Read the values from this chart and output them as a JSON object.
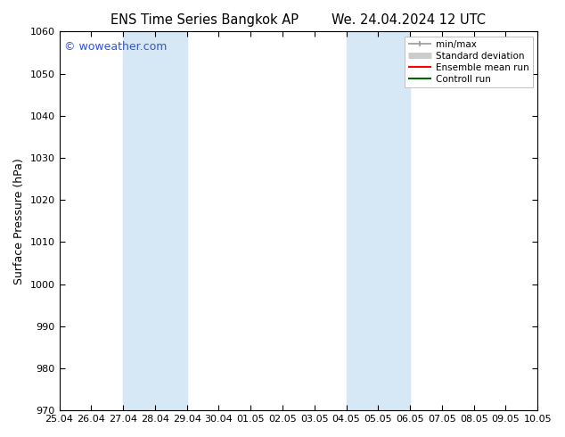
{
  "title_left": "ENS Time Series Bangkok AP",
  "title_right": "We. 24.04.2024 12 UTC",
  "ylabel": "Surface Pressure (hPa)",
  "ylim": [
    970,
    1060
  ],
  "yticks": [
    970,
    980,
    990,
    1000,
    1010,
    1020,
    1030,
    1040,
    1050,
    1060
  ],
  "x_labels": [
    "25.04",
    "26.04",
    "27.04",
    "28.04",
    "29.04",
    "30.04",
    "01.05",
    "02.05",
    "03.05",
    "04.05",
    "05.05",
    "06.05",
    "07.05",
    "08.05",
    "09.05",
    "10.05"
  ],
  "x_values": [
    0,
    1,
    2,
    3,
    4,
    5,
    6,
    7,
    8,
    9,
    10,
    11,
    12,
    13,
    14,
    15
  ],
  "shaded_regions": [
    {
      "xmin": 2,
      "xmax": 4,
      "color": "#d6e8f5"
    },
    {
      "xmin": 9,
      "xmax": 11,
      "color": "#d6e8f5"
    }
  ],
  "watermark": "© woweather.com",
  "watermark_color": "#3355cc",
  "background_color": "#ffffff",
  "plot_bg_color": "#ffffff",
  "spine_color": "#000000",
  "tick_color": "#000000",
  "legend_items": [
    {
      "label": "min/max",
      "color": "#999999",
      "lw": 1.2,
      "ls": "-"
    },
    {
      "label": "Standard deviation",
      "color": "#cccccc",
      "lw": 5,
      "ls": "-"
    },
    {
      "label": "Ensemble mean run",
      "color": "#ff0000",
      "lw": 1.5,
      "ls": "-"
    },
    {
      "label": "Controll run",
      "color": "#006600",
      "lw": 1.5,
      "ls": "-"
    }
  ],
  "title_fontsize": 10.5,
  "label_fontsize": 9,
  "tick_fontsize": 8,
  "legend_fontsize": 7.5,
  "watermark_fontsize": 9
}
